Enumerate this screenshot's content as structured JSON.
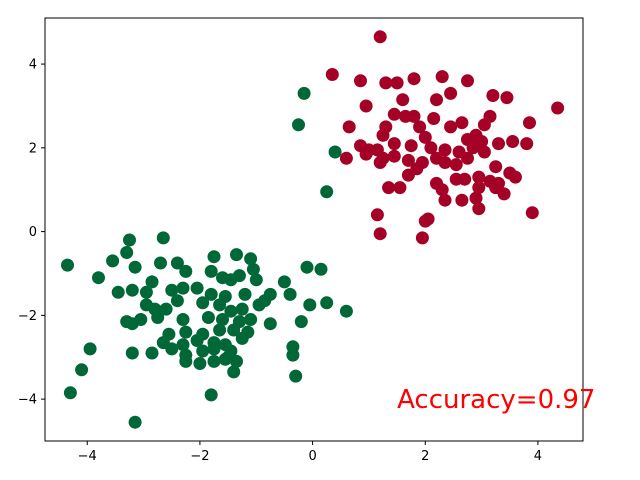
{
  "chart_data": {
    "type": "scatter",
    "title": "",
    "xlabel": "",
    "ylabel": "",
    "xlim": [
      -4.75,
      4.8
    ],
    "ylim": [
      -5.0,
      5.1
    ],
    "xticks": [
      -4,
      -2,
      0,
      2,
      4
    ],
    "yticks": [
      -4,
      -2,
      0,
      2,
      4
    ],
    "xtick_labels": [
      "−4",
      "−2",
      "0",
      "2",
      "4"
    ],
    "ytick_labels": [
      "−4",
      "−2",
      "0",
      "2",
      "4"
    ],
    "grid": false,
    "legend": null,
    "annotation": {
      "text": "Accuracy=0.97",
      "x": 1.5,
      "y": -4.0,
      "color": "#ff0000"
    },
    "series": [
      {
        "color": "#a50026",
        "points": [
          [
            1.2,
            4.65
          ],
          [
            0.35,
            3.75
          ],
          [
            0.85,
            3.6
          ],
          [
            1.3,
            3.55
          ],
          [
            1.5,
            3.55
          ],
          [
            1.8,
            3.65
          ],
          [
            2.3,
            3.7
          ],
          [
            2.75,
            3.6
          ],
          [
            2.45,
            3.3
          ],
          [
            3.2,
            3.25
          ],
          [
            3.45,
            3.2
          ],
          [
            2.2,
            3.15
          ],
          [
            1.6,
            3.15
          ],
          [
            0.95,
            3.0
          ],
          [
            4.35,
            2.95
          ],
          [
            1.45,
            2.8
          ],
          [
            1.65,
            2.75
          ],
          [
            1.8,
            2.75
          ],
          [
            2.15,
            2.7
          ],
          [
            2.65,
            2.6
          ],
          [
            3.05,
            2.55
          ],
          [
            3.85,
            2.6
          ],
          [
            3.15,
            2.75
          ],
          [
            0.65,
            2.5
          ],
          [
            1.3,
            2.5
          ],
          [
            2.45,
            2.5
          ],
          [
            1.9,
            2.5
          ],
          [
            2.9,
            2.3
          ],
          [
            1.25,
            2.3
          ],
          [
            2.0,
            2.25
          ],
          [
            2.75,
            2.2
          ],
          [
            3.0,
            2.15
          ],
          [
            3.3,
            2.1
          ],
          [
            3.55,
            2.15
          ],
          [
            3.8,
            2.1
          ],
          [
            0.85,
            2.05
          ],
          [
            1.0,
            1.95
          ],
          [
            1.15,
            1.95
          ],
          [
            1.45,
            2.1
          ],
          [
            1.75,
            2.05
          ],
          [
            2.1,
            2.0
          ],
          [
            2.35,
            1.95
          ],
          [
            2.6,
            1.9
          ],
          [
            2.85,
            2.0
          ],
          [
            3.05,
            1.9
          ],
          [
            0.6,
            1.75
          ],
          [
            0.95,
            1.85
          ],
          [
            1.25,
            1.75
          ],
          [
            1.45,
            1.8
          ],
          [
            1.7,
            1.7
          ],
          [
            1.95,
            1.65
          ],
          [
            2.2,
            1.75
          ],
          [
            2.35,
            1.65
          ],
          [
            2.55,
            1.6
          ],
          [
            2.75,
            1.75
          ],
          [
            1.2,
            1.65
          ],
          [
            1.85,
            1.5
          ],
          [
            3.25,
            1.55
          ],
          [
            3.5,
            1.4
          ],
          [
            1.7,
            1.35
          ],
          [
            2.55,
            1.25
          ],
          [
            2.7,
            1.25
          ],
          [
            2.95,
            1.3
          ],
          [
            3.15,
            1.2
          ],
          [
            3.3,
            1.15
          ],
          [
            3.6,
            1.3
          ],
          [
            1.35,
            1.05
          ],
          [
            1.55,
            1.05
          ],
          [
            2.2,
            1.15
          ],
          [
            2.3,
            1.0
          ],
          [
            2.95,
            1.05
          ],
          [
            3.25,
            1.05
          ],
          [
            3.4,
            0.9
          ],
          [
            2.35,
            0.75
          ],
          [
            2.65,
            0.75
          ],
          [
            2.9,
            0.8
          ],
          [
            2.95,
            0.55
          ],
          [
            3.9,
            0.45
          ],
          [
            1.15,
            0.4
          ],
          [
            2.05,
            0.3
          ],
          [
            2.0,
            0.25
          ],
          [
            1.2,
            -0.05
          ],
          [
            1.95,
            -0.15
          ]
        ]
      },
      {
        "color": "#006837",
        "points": [
          [
            -0.15,
            3.3
          ],
          [
            -0.25,
            2.55
          ],
          [
            0.4,
            1.9
          ],
          [
            0.25,
            0.95
          ],
          [
            -4.35,
            -0.8
          ],
          [
            -3.25,
            -0.2
          ],
          [
            -2.65,
            -0.15
          ],
          [
            -3.3,
            -0.5
          ],
          [
            -3.8,
            -1.1
          ],
          [
            -3.55,
            -0.7
          ],
          [
            -3.15,
            -0.85
          ],
          [
            -2.7,
            -0.75
          ],
          [
            -2.4,
            -0.75
          ],
          [
            -2.25,
            -0.95
          ],
          [
            -1.75,
            -0.6
          ],
          [
            -1.8,
            -0.95
          ],
          [
            -1.35,
            -0.55
          ],
          [
            -1.1,
            -0.65
          ],
          [
            -1.05,
            -0.9
          ],
          [
            -0.1,
            -0.85
          ],
          [
            0.15,
            -0.9
          ],
          [
            -1.6,
            -1.1
          ],
          [
            -1.45,
            -1.15
          ],
          [
            -1.3,
            -1.05
          ],
          [
            -1.0,
            -1.15
          ],
          [
            -3.45,
            -1.45
          ],
          [
            -3.2,
            -1.4
          ],
          [
            -2.95,
            -1.45
          ],
          [
            -2.85,
            -1.2
          ],
          [
            -2.5,
            -1.4
          ],
          [
            -2.3,
            -1.35
          ],
          [
            -2.05,
            -1.35
          ],
          [
            -1.8,
            -1.5
          ],
          [
            -1.55,
            -1.55
          ],
          [
            -1.2,
            -1.5
          ],
          [
            -0.75,
            -1.5
          ],
          [
            -0.5,
            -1.2
          ],
          [
            -0.4,
            -1.5
          ],
          [
            -2.95,
            -1.75
          ],
          [
            -2.8,
            -1.85
          ],
          [
            -2.6,
            -1.85
          ],
          [
            -2.4,
            -1.65
          ],
          [
            -1.95,
            -1.7
          ],
          [
            -1.65,
            -1.75
          ],
          [
            -1.45,
            -1.9
          ],
          [
            -1.25,
            -1.85
          ],
          [
            -0.95,
            -1.75
          ],
          [
            -0.85,
            -1.65
          ],
          [
            -0.05,
            -1.75
          ],
          [
            0.25,
            -1.7
          ],
          [
            0.6,
            -1.9
          ],
          [
            -3.3,
            -2.15
          ],
          [
            -3.05,
            -2.1
          ],
          [
            -2.75,
            -2.05
          ],
          [
            -2.3,
            -2.1
          ],
          [
            -1.85,
            -2.05
          ],
          [
            -1.6,
            -2.1
          ],
          [
            -1.3,
            -2.15
          ],
          [
            -1.1,
            -2.1
          ],
          [
            -0.75,
            -2.2
          ],
          [
            -0.2,
            -2.15
          ],
          [
            -3.2,
            -2.2
          ],
          [
            -2.55,
            -2.45
          ],
          [
            -2.25,
            -2.4
          ],
          [
            -1.95,
            -2.45
          ],
          [
            -1.65,
            -2.35
          ],
          [
            -1.4,
            -2.35
          ],
          [
            -1.15,
            -2.4
          ],
          [
            -2.65,
            -2.65
          ],
          [
            -2.3,
            -2.7
          ],
          [
            -2.05,
            -2.6
          ],
          [
            -1.75,
            -2.65
          ],
          [
            -1.55,
            -2.7
          ],
          [
            -1.25,
            -2.55
          ],
          [
            -3.95,
            -2.8
          ],
          [
            -3.2,
            -2.9
          ],
          [
            -2.85,
            -2.9
          ],
          [
            -2.5,
            -2.8
          ],
          [
            -2.25,
            -2.95
          ],
          [
            -1.95,
            -2.85
          ],
          [
            -1.75,
            -2.8
          ],
          [
            -1.45,
            -2.85
          ],
          [
            -1.5,
            -3.0
          ],
          [
            -0.35,
            -2.75
          ],
          [
            -0.35,
            -2.95
          ],
          [
            -2.25,
            -3.1
          ],
          [
            -2.0,
            -3.15
          ],
          [
            -1.75,
            -3.1
          ],
          [
            -1.55,
            -3.05
          ],
          [
            -1.35,
            -3.1
          ],
          [
            -4.1,
            -3.3
          ],
          [
            -1.4,
            -3.35
          ],
          [
            -0.3,
            -3.45
          ],
          [
            -4.3,
            -3.85
          ],
          [
            -1.8,
            -3.9
          ],
          [
            -3.15,
            -4.55
          ]
        ]
      }
    ]
  }
}
